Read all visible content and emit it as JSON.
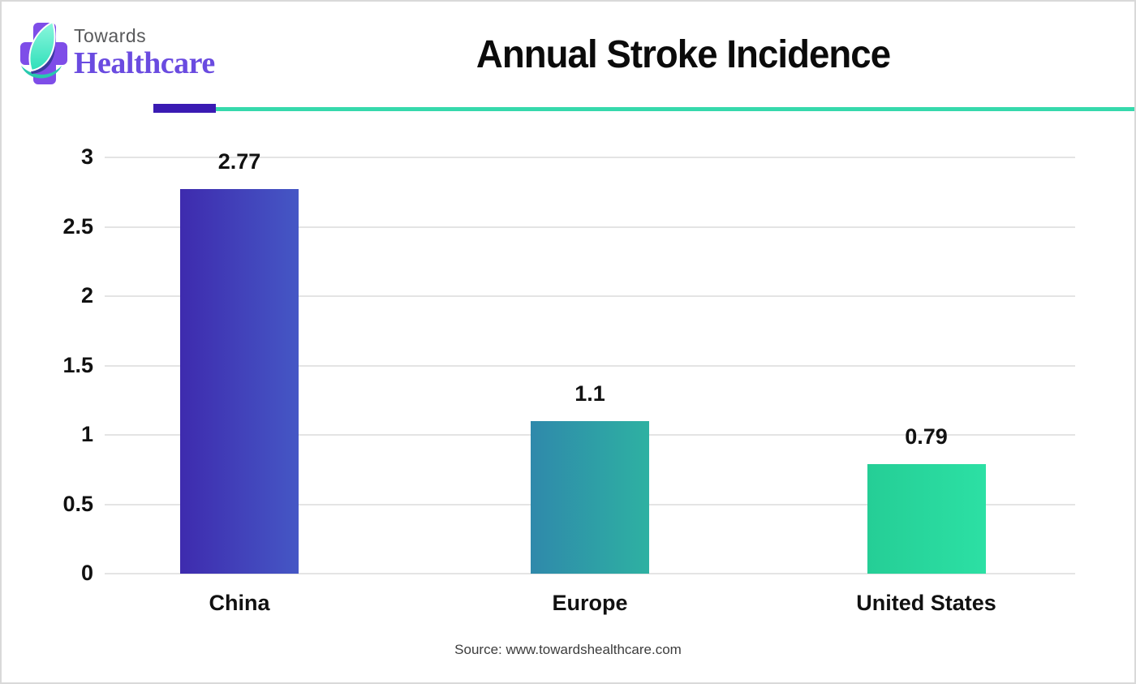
{
  "page": {
    "background": "#ffffff",
    "border_color": "#d9d9d9"
  },
  "logo": {
    "brand_top": "Towards",
    "brand_bottom": "Healthcare",
    "colors": {
      "cross": "#7e4de8",
      "leaf_top": "#8df7dd",
      "leaf_bottom": "#2fdfba",
      "leaf_shadow": "#3a3aa0",
      "swoosh": "#28c9ae",
      "brand_top_text": "#58595b",
      "brand_bottom_text": "#6a4be0"
    }
  },
  "header": {
    "divider": {
      "accent_color": "#3a1bb3",
      "line_color": "#36d9ac"
    }
  },
  "chart_data": {
    "type": "bar",
    "title": "Annual Stroke Incidence",
    "categories": [
      "China",
      "Europe",
      "United States"
    ],
    "values": [
      2.77,
      1.1,
      0.79
    ],
    "value_labels": [
      "2.77",
      "1.1",
      "0.79"
    ],
    "xlabel": "",
    "ylabel": "",
    "ylim": [
      0,
      3
    ],
    "yticks": [
      0,
      0.5,
      1,
      1.5,
      2,
      2.5,
      3
    ],
    "ytick_labels": [
      "0",
      "0.5",
      "1",
      "1.5",
      "2",
      "2.5",
      "3"
    ],
    "grid": true,
    "legend": false,
    "gridline_color": "#e4e4e4",
    "label_color": "#111111",
    "bar_gradients": [
      {
        "from": "#3e2bae",
        "to": "#4557c5"
      },
      {
        "from": "#2f89ab",
        "to": "#2eb1a2"
      },
      {
        "from": "#25ce96",
        "to": "#2ce0a4"
      }
    ]
  },
  "footer": {
    "source": "Source: www.towardshealthcare.com"
  }
}
